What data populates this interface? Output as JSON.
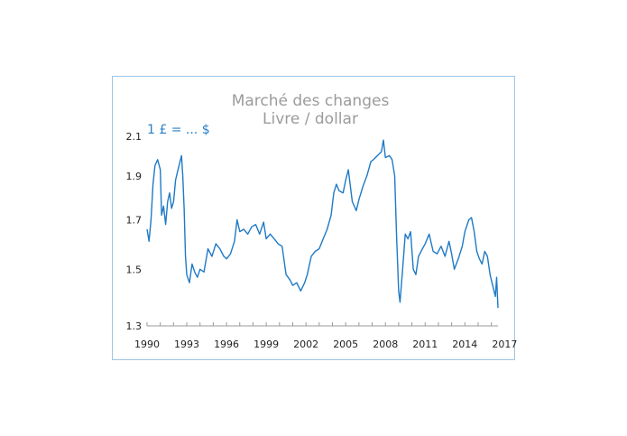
{
  "chart_data": {
    "type": "line",
    "title": "Marché des changes",
    "subtitle": "Livre / dollar",
    "unit_label": "1 £ = ... $",
    "xlabel": "",
    "ylabel": "",
    "xlim": [
      1990,
      2016.5
    ],
    "ylim": [
      1.3,
      2.1
    ],
    "y_scale": "log",
    "y_ticks": [
      1.3,
      1.5,
      1.7,
      1.9,
      2.1
    ],
    "y_tick_labels": [
      "1.3",
      "1.5",
      "1.7",
      "1.9",
      "2.1"
    ],
    "x_ticks": [
      1990,
      1993,
      1996,
      1999,
      2002,
      2005,
      2008,
      2011,
      2014,
      2017
    ],
    "x_tick_labels": [
      "1990",
      "1993",
      "1996",
      "1999",
      "2002",
      "2005",
      "2008",
      "2011",
      "2014",
      "2017"
    ],
    "grid": false,
    "legend": "none",
    "series": [
      {
        "color": "#1f7ac5",
        "x": [
          1990.0,
          1990.15,
          1990.3,
          1990.45,
          1990.6,
          1990.8,
          1991.0,
          1991.1,
          1991.25,
          1991.4,
          1991.55,
          1991.7,
          1991.85,
          1992.0,
          1992.15,
          1992.3,
          1992.45,
          1992.6,
          1992.7,
          1992.8,
          1992.9,
          1993.0,
          1993.2,
          1993.4,
          1993.6,
          1993.8,
          1994.0,
          1994.3,
          1994.6,
          1994.9,
          1995.2,
          1995.5,
          1995.8,
          1996.0,
          1996.3,
          1996.6,
          1996.8,
          1997.0,
          1997.3,
          1997.6,
          1997.9,
          1998.2,
          1998.5,
          1998.8,
          1999.0,
          1999.3,
          1999.6,
          1999.9,
          2000.2,
          2000.5,
          2000.8,
          2001.0,
          2001.3,
          2001.6,
          2001.9,
          2002.1,
          2002.4,
          2002.7,
          2003.0,
          2003.3,
          2003.6,
          2003.9,
          2004.1,
          2004.3,
          2004.5,
          2004.8,
          2005.0,
          2005.2,
          2005.5,
          2005.8,
          2006.0,
          2006.3,
          2006.6,
          2006.9,
          2007.1,
          2007.4,
          2007.7,
          2007.85,
          2008.0,
          2008.3,
          2008.5,
          2008.7,
          2008.85,
          2009.0,
          2009.1,
          2009.3,
          2009.5,
          2009.7,
          2009.9,
          2010.1,
          2010.3,
          2010.5,
          2010.8,
          2011.0,
          2011.3,
          2011.6,
          2011.9,
          2012.2,
          2012.5,
          2012.8,
          2013.0,
          2013.2,
          2013.5,
          2013.8,
          2014.0,
          2014.3,
          2014.5,
          2014.7,
          2014.9,
          2015.1,
          2015.3,
          2015.5,
          2015.7,
          2015.9,
          2016.1,
          2016.3,
          2016.4,
          2016.5
        ],
        "y": [
          1.66,
          1.61,
          1.7,
          1.86,
          1.95,
          1.98,
          1.93,
          1.72,
          1.76,
          1.68,
          1.78,
          1.82,
          1.75,
          1.78,
          1.88,
          1.92,
          1.96,
          2.0,
          1.9,
          1.75,
          1.55,
          1.48,
          1.45,
          1.52,
          1.49,
          1.47,
          1.5,
          1.49,
          1.58,
          1.55,
          1.6,
          1.58,
          1.55,
          1.54,
          1.56,
          1.61,
          1.7,
          1.65,
          1.66,
          1.64,
          1.67,
          1.68,
          1.64,
          1.69,
          1.62,
          1.64,
          1.62,
          1.6,
          1.59,
          1.48,
          1.46,
          1.44,
          1.45,
          1.42,
          1.45,
          1.48,
          1.55,
          1.57,
          1.58,
          1.62,
          1.66,
          1.72,
          1.82,
          1.86,
          1.83,
          1.82,
          1.88,
          1.93,
          1.78,
          1.74,
          1.79,
          1.85,
          1.9,
          1.97,
          1.98,
          2.0,
          2.02,
          2.08,
          1.99,
          2.0,
          1.98,
          1.9,
          1.62,
          1.42,
          1.38,
          1.5,
          1.64,
          1.62,
          1.65,
          1.5,
          1.48,
          1.55,
          1.58,
          1.6,
          1.64,
          1.57,
          1.56,
          1.59,
          1.55,
          1.61,
          1.56,
          1.5,
          1.54,
          1.59,
          1.65,
          1.7,
          1.71,
          1.65,
          1.57,
          1.54,
          1.52,
          1.57,
          1.55,
          1.48,
          1.44,
          1.4,
          1.47,
          1.36
        ]
      }
    ]
  }
}
